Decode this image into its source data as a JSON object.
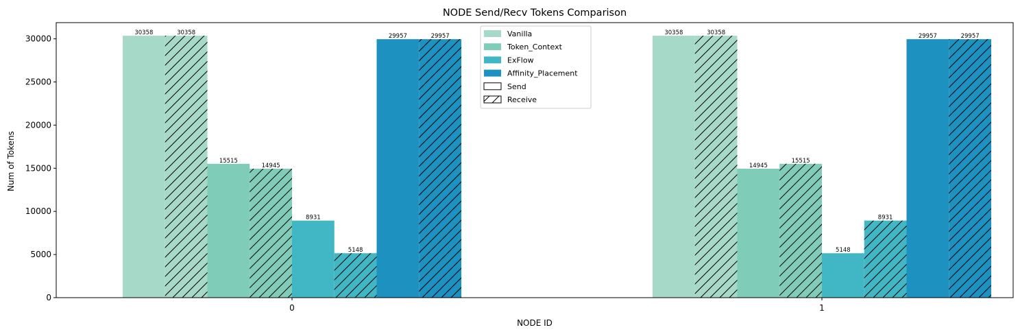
{
  "chart_data": {
    "type": "bar",
    "title": "NODE Send/Recv Tokens Comparison",
    "xlabel": "NODE ID",
    "ylabel": "Num of Tokens",
    "categories": [
      "0",
      "1"
    ],
    "ylim": [
      0,
      31877
    ],
    "yticks": [
      0,
      5000,
      10000,
      15000,
      20000,
      25000,
      30000
    ],
    "legend_position": "top-center",
    "series": [
      {
        "name": "Vanilla",
        "kind": "Send",
        "color": "#a6d9c8",
        "values": [
          30358,
          30358
        ]
      },
      {
        "name": "Vanilla",
        "kind": "Receive",
        "color": "#a6d9c8",
        "values": [
          30358,
          30358
        ]
      },
      {
        "name": "Token_Context",
        "kind": "Send",
        "color": "#7fcdb9",
        "values": [
          15515,
          14945
        ]
      },
      {
        "name": "Token_Context",
        "kind": "Receive",
        "color": "#7fcdb9",
        "values": [
          14945,
          15515
        ]
      },
      {
        "name": "ExFlow",
        "kind": "Send",
        "color": "#41b6c4",
        "values": [
          8931,
          5148
        ]
      },
      {
        "name": "ExFlow",
        "kind": "Receive",
        "color": "#41b6c4",
        "values": [
          5148,
          8931
        ]
      },
      {
        "name": "Affinity_Placement",
        "kind": "Send",
        "color": "#1d91c0",
        "values": [
          29957,
          29957
        ]
      },
      {
        "name": "Affinity_Placement",
        "kind": "Receive",
        "color": "#1d91c0",
        "values": [
          29957,
          29957
        ]
      }
    ],
    "legend": [
      {
        "label": "Vanilla",
        "color": "#a6d9c8",
        "hatch": false
      },
      {
        "label": "Token_Context",
        "color": "#7fcdb9",
        "hatch": false
      },
      {
        "label": "ExFlow",
        "color": "#41b6c4",
        "hatch": false
      },
      {
        "label": "Affinity_Placement",
        "color": "#1d91c0",
        "hatch": false
      },
      {
        "label": "Send",
        "color": "#ffffff",
        "hatch": false
      },
      {
        "label": "Receive",
        "color": "#ffffff",
        "hatch": true
      }
    ]
  }
}
